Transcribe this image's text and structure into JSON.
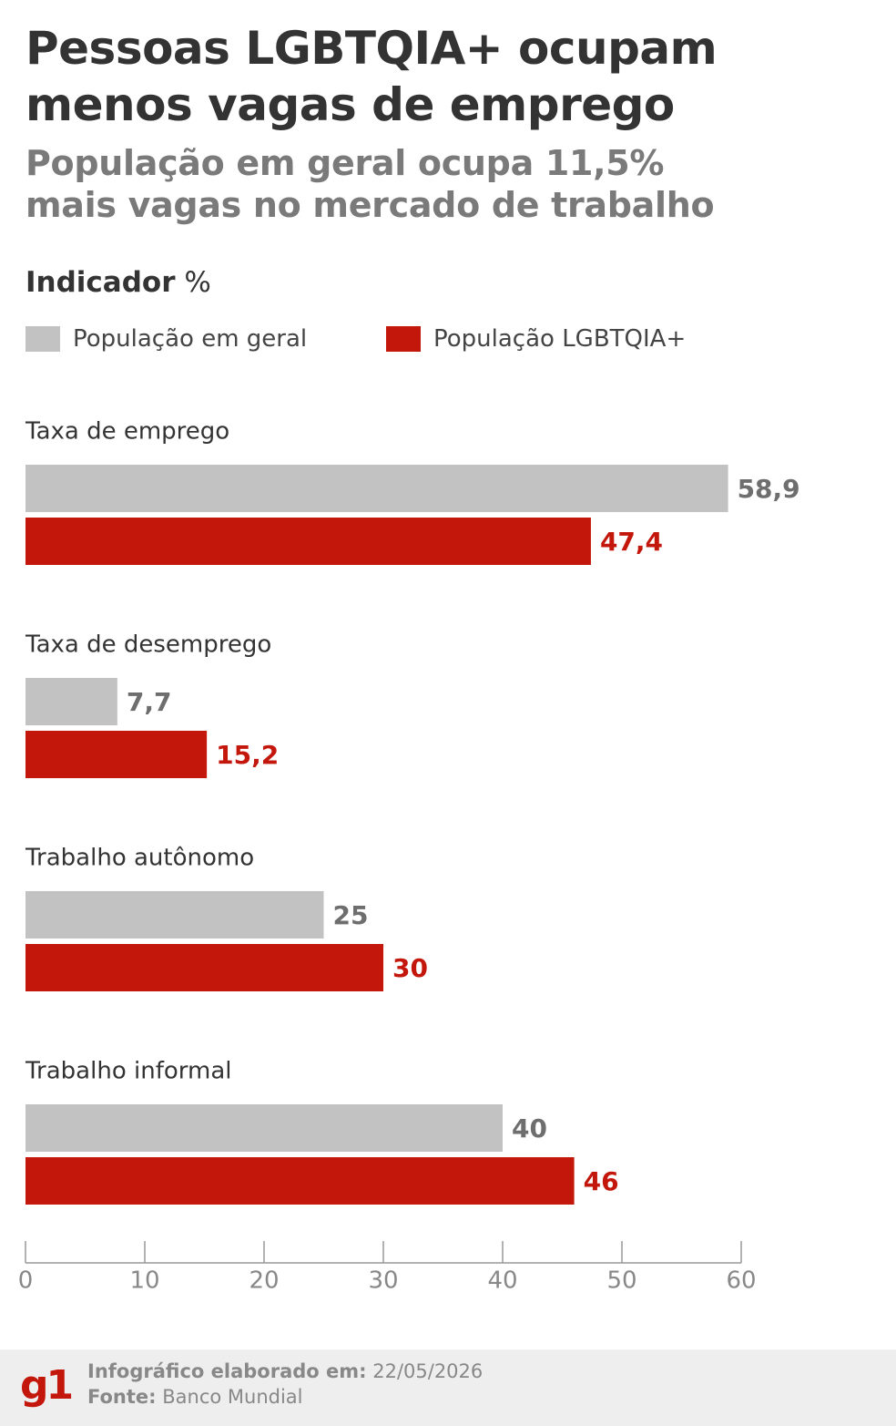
{
  "header": {
    "title_line1": "Pessoas LGBTQIA+ ocupam",
    "title_line2": "menos vagas de emprego",
    "subtitle_line1": "População em geral ocupa 11,5%",
    "subtitle_line2": "mais vagas no mercado de trabalho",
    "indicator_label": "Indicador",
    "indicator_unit": "%"
  },
  "legend": [
    {
      "label": "População em geral",
      "color": "#c2c2c2"
    },
    {
      "label": "População LGBTQIA+",
      "color": "#c4170c"
    }
  ],
  "chart_data": {
    "type": "bar",
    "orientation": "horizontal",
    "categories": [
      "Taxa de emprego",
      "Taxa de desemprego",
      "Trabalho autônomo",
      "Trabalho informal"
    ],
    "series": [
      {
        "name": "População em geral",
        "values": [
          58.9,
          7.7,
          25,
          40
        ],
        "labels": [
          "58,9",
          "7,7",
          "25",
          "40"
        ],
        "color": "#c2c2c2",
        "label_color": "#6e6e6e"
      },
      {
        "name": "População LGBTQIA+",
        "values": [
          47.4,
          15.2,
          30,
          46
        ],
        "labels": [
          "47,4",
          "15,2",
          "30",
          "46"
        ],
        "color": "#c4170c",
        "label_color": "#c4170c"
      }
    ],
    "xlim": [
      0,
      60
    ],
    "xticks": [
      0,
      10,
      20,
      30,
      40,
      50,
      60
    ],
    "grid": false
  },
  "footer": {
    "logo": "g1",
    "created_label": "Infográfico elaborado em:",
    "created_value": "22/05/2026",
    "source_label": "Fonte:",
    "source_value": "Banco Mundial"
  }
}
